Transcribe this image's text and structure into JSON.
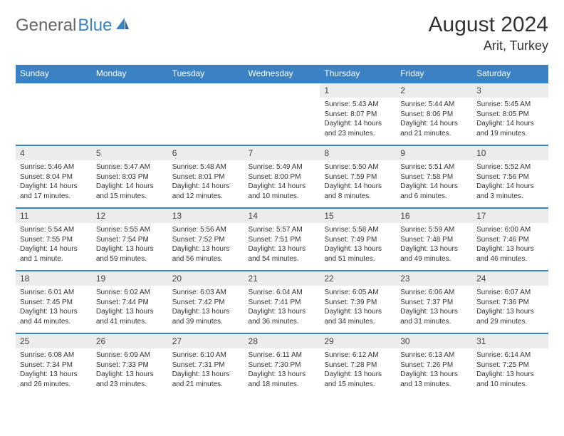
{
  "logo": {
    "general": "General",
    "blue": "Blue"
  },
  "title": "August 2024",
  "location": "Arit, Turkey",
  "colors": {
    "header_bg": "#3b82c4",
    "daynum_bg": "#ececec",
    "border": "#3b82c4",
    "background": "#ffffff",
    "logo_gray": "#666666",
    "logo_blue": "#3b82c4"
  },
  "days_of_week": [
    "Sunday",
    "Monday",
    "Tuesday",
    "Wednesday",
    "Thursday",
    "Friday",
    "Saturday"
  ],
  "weeks": [
    [
      null,
      null,
      null,
      null,
      {
        "n": "1",
        "sr": "Sunrise: 5:43 AM",
        "ss": "Sunset: 8:07 PM",
        "dl1": "Daylight: 14 hours",
        "dl2": "and 23 minutes."
      },
      {
        "n": "2",
        "sr": "Sunrise: 5:44 AM",
        "ss": "Sunset: 8:06 PM",
        "dl1": "Daylight: 14 hours",
        "dl2": "and 21 minutes."
      },
      {
        "n": "3",
        "sr": "Sunrise: 5:45 AM",
        "ss": "Sunset: 8:05 PM",
        "dl1": "Daylight: 14 hours",
        "dl2": "and 19 minutes."
      }
    ],
    [
      {
        "n": "4",
        "sr": "Sunrise: 5:46 AM",
        "ss": "Sunset: 8:04 PM",
        "dl1": "Daylight: 14 hours",
        "dl2": "and 17 minutes."
      },
      {
        "n": "5",
        "sr": "Sunrise: 5:47 AM",
        "ss": "Sunset: 8:03 PM",
        "dl1": "Daylight: 14 hours",
        "dl2": "and 15 minutes."
      },
      {
        "n": "6",
        "sr": "Sunrise: 5:48 AM",
        "ss": "Sunset: 8:01 PM",
        "dl1": "Daylight: 14 hours",
        "dl2": "and 12 minutes."
      },
      {
        "n": "7",
        "sr": "Sunrise: 5:49 AM",
        "ss": "Sunset: 8:00 PM",
        "dl1": "Daylight: 14 hours",
        "dl2": "and 10 minutes."
      },
      {
        "n": "8",
        "sr": "Sunrise: 5:50 AM",
        "ss": "Sunset: 7:59 PM",
        "dl1": "Daylight: 14 hours",
        "dl2": "and 8 minutes."
      },
      {
        "n": "9",
        "sr": "Sunrise: 5:51 AM",
        "ss": "Sunset: 7:58 PM",
        "dl1": "Daylight: 14 hours",
        "dl2": "and 6 minutes."
      },
      {
        "n": "10",
        "sr": "Sunrise: 5:52 AM",
        "ss": "Sunset: 7:56 PM",
        "dl1": "Daylight: 14 hours",
        "dl2": "and 3 minutes."
      }
    ],
    [
      {
        "n": "11",
        "sr": "Sunrise: 5:54 AM",
        "ss": "Sunset: 7:55 PM",
        "dl1": "Daylight: 14 hours",
        "dl2": "and 1 minute."
      },
      {
        "n": "12",
        "sr": "Sunrise: 5:55 AM",
        "ss": "Sunset: 7:54 PM",
        "dl1": "Daylight: 13 hours",
        "dl2": "and 59 minutes."
      },
      {
        "n": "13",
        "sr": "Sunrise: 5:56 AM",
        "ss": "Sunset: 7:52 PM",
        "dl1": "Daylight: 13 hours",
        "dl2": "and 56 minutes."
      },
      {
        "n": "14",
        "sr": "Sunrise: 5:57 AM",
        "ss": "Sunset: 7:51 PM",
        "dl1": "Daylight: 13 hours",
        "dl2": "and 54 minutes."
      },
      {
        "n": "15",
        "sr": "Sunrise: 5:58 AM",
        "ss": "Sunset: 7:49 PM",
        "dl1": "Daylight: 13 hours",
        "dl2": "and 51 minutes."
      },
      {
        "n": "16",
        "sr": "Sunrise: 5:59 AM",
        "ss": "Sunset: 7:48 PM",
        "dl1": "Daylight: 13 hours",
        "dl2": "and 49 minutes."
      },
      {
        "n": "17",
        "sr": "Sunrise: 6:00 AM",
        "ss": "Sunset: 7:46 PM",
        "dl1": "Daylight: 13 hours",
        "dl2": "and 46 minutes."
      }
    ],
    [
      {
        "n": "18",
        "sr": "Sunrise: 6:01 AM",
        "ss": "Sunset: 7:45 PM",
        "dl1": "Daylight: 13 hours",
        "dl2": "and 44 minutes."
      },
      {
        "n": "19",
        "sr": "Sunrise: 6:02 AM",
        "ss": "Sunset: 7:44 PM",
        "dl1": "Daylight: 13 hours",
        "dl2": "and 41 minutes."
      },
      {
        "n": "20",
        "sr": "Sunrise: 6:03 AM",
        "ss": "Sunset: 7:42 PM",
        "dl1": "Daylight: 13 hours",
        "dl2": "and 39 minutes."
      },
      {
        "n": "21",
        "sr": "Sunrise: 6:04 AM",
        "ss": "Sunset: 7:41 PM",
        "dl1": "Daylight: 13 hours",
        "dl2": "and 36 minutes."
      },
      {
        "n": "22",
        "sr": "Sunrise: 6:05 AM",
        "ss": "Sunset: 7:39 PM",
        "dl1": "Daylight: 13 hours",
        "dl2": "and 34 minutes."
      },
      {
        "n": "23",
        "sr": "Sunrise: 6:06 AM",
        "ss": "Sunset: 7:37 PM",
        "dl1": "Daylight: 13 hours",
        "dl2": "and 31 minutes."
      },
      {
        "n": "24",
        "sr": "Sunrise: 6:07 AM",
        "ss": "Sunset: 7:36 PM",
        "dl1": "Daylight: 13 hours",
        "dl2": "and 29 minutes."
      }
    ],
    [
      {
        "n": "25",
        "sr": "Sunrise: 6:08 AM",
        "ss": "Sunset: 7:34 PM",
        "dl1": "Daylight: 13 hours",
        "dl2": "and 26 minutes."
      },
      {
        "n": "26",
        "sr": "Sunrise: 6:09 AM",
        "ss": "Sunset: 7:33 PM",
        "dl1": "Daylight: 13 hours",
        "dl2": "and 23 minutes."
      },
      {
        "n": "27",
        "sr": "Sunrise: 6:10 AM",
        "ss": "Sunset: 7:31 PM",
        "dl1": "Daylight: 13 hours",
        "dl2": "and 21 minutes."
      },
      {
        "n": "28",
        "sr": "Sunrise: 6:11 AM",
        "ss": "Sunset: 7:30 PM",
        "dl1": "Daylight: 13 hours",
        "dl2": "and 18 minutes."
      },
      {
        "n": "29",
        "sr": "Sunrise: 6:12 AM",
        "ss": "Sunset: 7:28 PM",
        "dl1": "Daylight: 13 hours",
        "dl2": "and 15 minutes."
      },
      {
        "n": "30",
        "sr": "Sunrise: 6:13 AM",
        "ss": "Sunset: 7:26 PM",
        "dl1": "Daylight: 13 hours",
        "dl2": "and 13 minutes."
      },
      {
        "n": "31",
        "sr": "Sunrise: 6:14 AM",
        "ss": "Sunset: 7:25 PM",
        "dl1": "Daylight: 13 hours",
        "dl2": "and 10 minutes."
      }
    ]
  ]
}
